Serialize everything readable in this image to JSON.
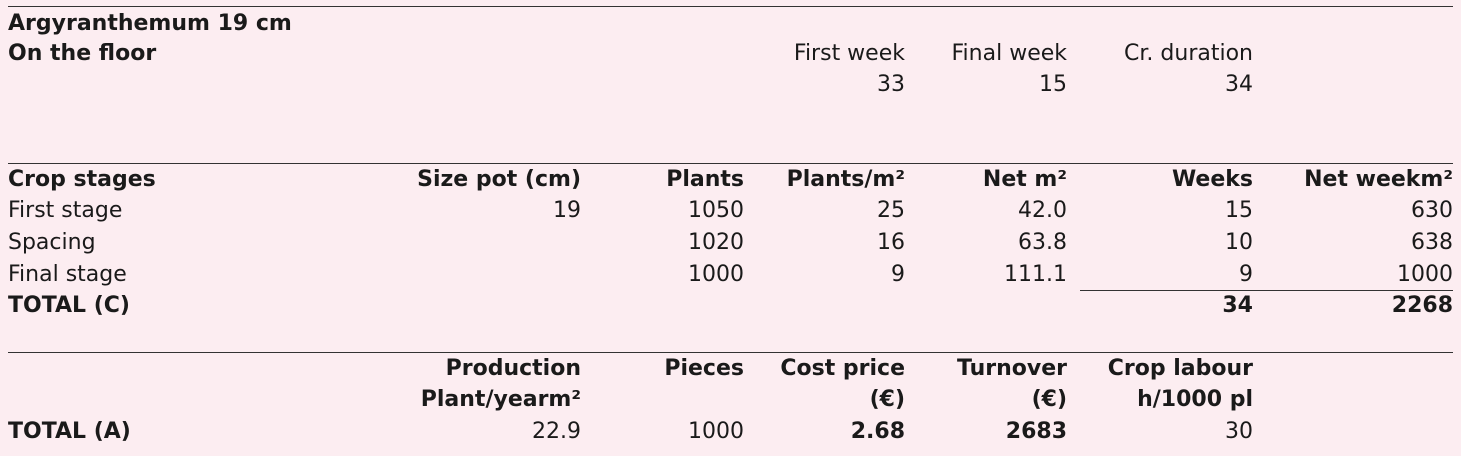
{
  "header": {
    "title": "Argyranthemum 19 cm",
    "subtitle": "On the floor",
    "first_week_label": "First week",
    "final_week_label": "Final week",
    "duration_label": "Cr. duration",
    "first_week": "33",
    "final_week": "15",
    "duration": "34"
  },
  "stages": {
    "headers": {
      "stage": "Crop stages",
      "size_pot": "Size pot (cm)",
      "plants": "Plants",
      "plants_m2": "Plants/m²",
      "net_m2": "Net m²",
      "weeks": "Weeks",
      "net_weekm2": "Net weekm²"
    },
    "rows": [
      {
        "stage": "First stage",
        "size_pot": "19",
        "plants": "1050",
        "plants_m2": "25",
        "net_m2": "42.0",
        "weeks": "15",
        "net_weekm2": "630"
      },
      {
        "stage": "Spacing",
        "size_pot": "",
        "plants": "1020",
        "plants_m2": "16",
        "net_m2": "63.8",
        "weeks": "10",
        "net_weekm2": "638"
      },
      {
        "stage": "Final stage",
        "size_pot": "",
        "plants": "1000",
        "plants_m2": "9",
        "net_m2": "111.1",
        "weeks": "9",
        "net_weekm2": "1000"
      }
    ],
    "total": {
      "label": "TOTAL (C)",
      "weeks": "34",
      "net_weekm2": "2268"
    }
  },
  "summary": {
    "headers": {
      "production_1": "Production",
      "production_2": "Plant/yearm²",
      "pieces": "Pieces",
      "cost_price_1": "Cost price",
      "cost_price_2": "(€)",
      "turnover_1": "Turnover",
      "turnover_2": "(€)",
      "crop_labour_1": "Crop labour",
      "crop_labour_2": "h/1000 pl"
    },
    "total": {
      "label": "TOTAL (A)",
      "production": "22.9",
      "pieces": "1000",
      "cost_price": "2.68",
      "turnover": "2683",
      "crop_labour": "30"
    }
  }
}
